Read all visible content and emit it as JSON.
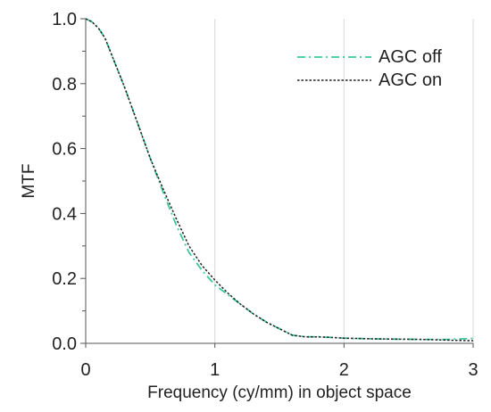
{
  "chart_data": {
    "type": "line",
    "title": "",
    "xlabel": "Frequency (cy/mm) in object space",
    "ylabel": "MTF",
    "xlim": [
      0,
      3
    ],
    "ylim": [
      0,
      1
    ],
    "x_ticks": [
      "0",
      "1",
      "2",
      "3"
    ],
    "y_ticks": [
      "0.0",
      "0.2",
      "0.4",
      "0.6",
      "0.8",
      "1.0"
    ],
    "grid": "vertical",
    "legend_position": "top-right",
    "series": [
      {
        "name": "AGC off",
        "color": "#3cc99a",
        "style": "dash-dot",
        "x": [
          0,
          0.05,
          0.1,
          0.15,
          0.2,
          0.3,
          0.4,
          0.5,
          0.6,
          0.7,
          0.8,
          0.9,
          1.0,
          1.1,
          1.2,
          1.3,
          1.4,
          1.5,
          1.6,
          1.7,
          1.8,
          1.9,
          2.0,
          2.2,
          2.4,
          2.6,
          2.8,
          3.0
        ],
        "y": [
          1.0,
          0.99,
          0.97,
          0.94,
          0.89,
          0.79,
          0.68,
          0.57,
          0.465,
          0.365,
          0.28,
          0.225,
          0.18,
          0.15,
          0.12,
          0.09,
          0.065,
          0.045,
          0.025,
          0.02,
          0.02,
          0.018,
          0.016,
          0.014,
          0.013,
          0.012,
          0.012,
          0.015
        ]
      },
      {
        "name": "AGC on",
        "color": "#222222",
        "style": "dotted",
        "x": [
          0,
          0.05,
          0.1,
          0.15,
          0.2,
          0.3,
          0.4,
          0.5,
          0.6,
          0.7,
          0.8,
          0.9,
          1.0,
          1.1,
          1.2,
          1.3,
          1.4,
          1.5,
          1.6,
          1.7,
          1.8,
          1.9,
          2.0,
          2.2,
          2.4,
          2.6,
          2.8,
          3.0
        ],
        "y": [
          1.0,
          0.99,
          0.97,
          0.94,
          0.89,
          0.79,
          0.68,
          0.57,
          0.475,
          0.385,
          0.3,
          0.24,
          0.195,
          0.155,
          0.12,
          0.09,
          0.065,
          0.045,
          0.025,
          0.02,
          0.02,
          0.018,
          0.016,
          0.014,
          0.013,
          0.012,
          0.01,
          0.008
        ]
      }
    ]
  }
}
